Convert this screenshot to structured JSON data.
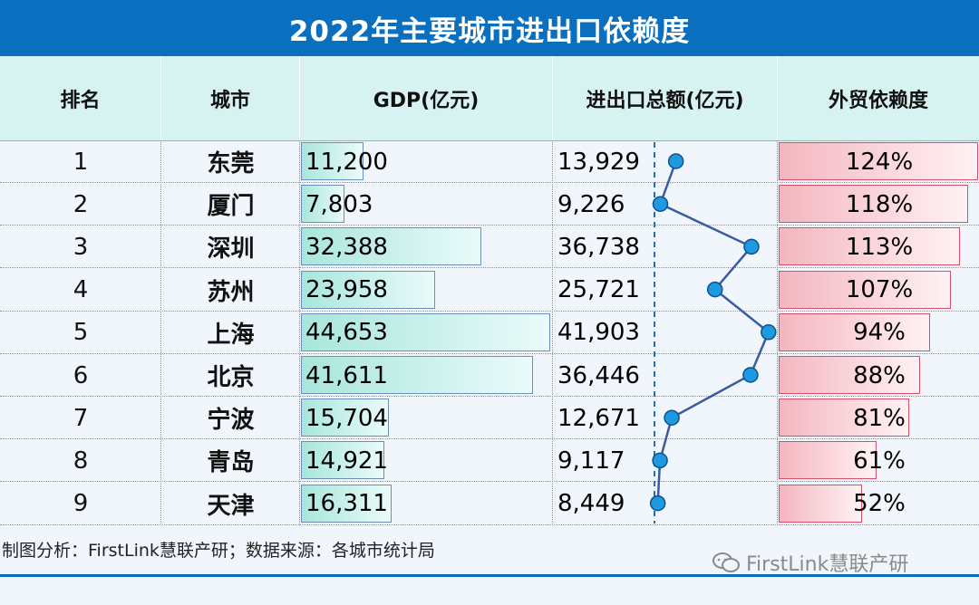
{
  "title": "2022年主要城市进出口依赖度",
  "headers": {
    "rank": "排名",
    "city": "城市",
    "gdp": "GDP(亿元)",
    "trade": "进出口总额(亿元)",
    "dependence": "外贸依赖度"
  },
  "rows": [
    {
      "rank": "1",
      "city": "东莞",
      "gdp": "11,200",
      "trade": "13,929",
      "dependence": "124%"
    },
    {
      "rank": "2",
      "city": "厦门",
      "gdp": "7,803",
      "trade": "9,226",
      "dependence": "118%"
    },
    {
      "rank": "3",
      "city": "深圳",
      "gdp": "32,388",
      "trade": "36,738",
      "dependence": "113%"
    },
    {
      "rank": "4",
      "city": "苏州",
      "gdp": "23,958",
      "trade": "25,721",
      "dependence": "107%"
    },
    {
      "rank": "5",
      "city": "上海",
      "gdp": "44,653",
      "trade": "41,903",
      "dependence": "94%"
    },
    {
      "rank": "6",
      "city": "北京",
      "gdp": "41,611",
      "trade": "36,446",
      "dependence": "88%"
    },
    {
      "rank": "7",
      "city": "宁波",
      "gdp": "15,704",
      "trade": "12,671",
      "dependence": "81%"
    },
    {
      "rank": "8",
      "city": "青岛",
      "gdp": "14,921",
      "trade": "9,117",
      "dependence": "61%"
    },
    {
      "rank": "9",
      "city": "天津",
      "gdp": "16,311",
      "trade": "8,449",
      "dependence": "52%"
    }
  ],
  "chart_data": {
    "type": "table",
    "title": "2022年主要城市进出口依赖度",
    "columns": [
      "排名",
      "城市",
      "GDP(亿元)",
      "进出口总额(亿元)",
      "外贸依赖度"
    ],
    "categories": [
      "东莞",
      "厦门",
      "深圳",
      "苏州",
      "上海",
      "北京",
      "宁波",
      "青岛",
      "天津"
    ],
    "series": [
      {
        "name": "GDP(亿元)",
        "values": [
          11200,
          7803,
          32388,
          23958,
          44653,
          41611,
          15704,
          14921,
          16311
        ]
      },
      {
        "name": "进出口总额(亿元)",
        "values": [
          13929,
          9226,
          36738,
          25721,
          41903,
          36446,
          12671,
          9117,
          8449
        ]
      },
      {
        "name": "外贸依赖度",
        "values": [
          1.24,
          1.18,
          1.13,
          1.07,
          0.94,
          0.88,
          0.81,
          0.61,
          0.52
        ]
      }
    ],
    "colors": {
      "gdp_bar": "#a8e6dc",
      "trade_line": "#3a5ba0",
      "trade_dot": "#1e9be0",
      "dependence_bar": "#f4b6c0"
    }
  },
  "footer": {
    "source": "制图分析：FirstLink慧联产研；数据来源：各城市统计局",
    "watermark": "FirstLink慧联产研"
  }
}
